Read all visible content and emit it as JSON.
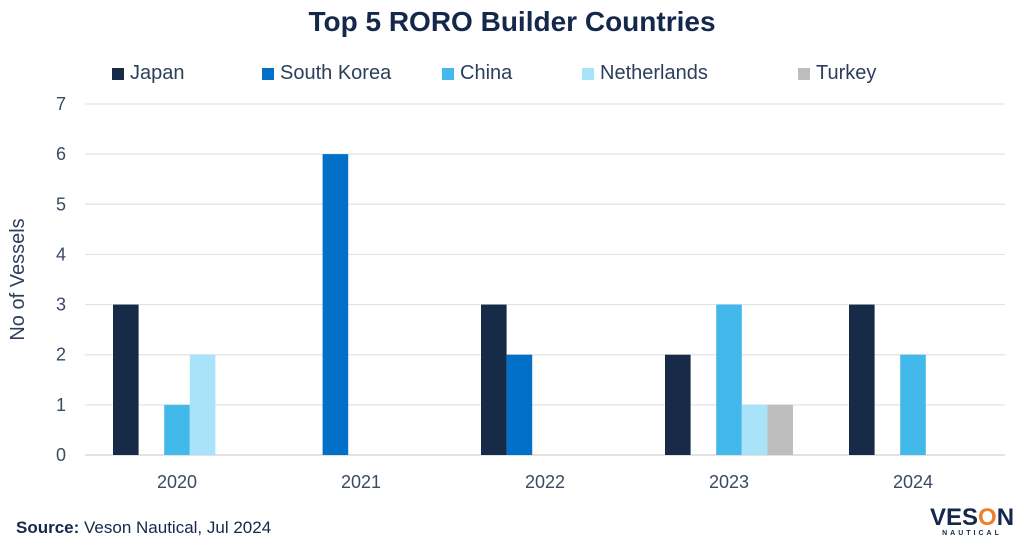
{
  "chart_data": {
    "type": "bar",
    "title": "Top 5 RORO Builder Countries",
    "xlabel": "",
    "ylabel": "No of Vessels",
    "ylim": [
      0,
      7
    ],
    "yticks": [
      "0",
      "1",
      "2",
      "3",
      "4",
      "5",
      "6",
      "7"
    ],
    "grid": true,
    "legend_position": "top",
    "categories": [
      "2020",
      "2021",
      "2022",
      "2023",
      "2024"
    ],
    "series": [
      {
        "name": "Japan",
        "color": "#172a48",
        "values": [
          3,
          0,
          3,
          2,
          3
        ]
      },
      {
        "name": "South Korea",
        "color": "#0270c8",
        "values": [
          0,
          6,
          2,
          0,
          0
        ]
      },
      {
        "name": "China",
        "color": "#42b9ea",
        "values": [
          1,
          0,
          0,
          3,
          2
        ]
      },
      {
        "name": "Netherlands",
        "color": "#a8e3fa",
        "values": [
          2,
          0,
          0,
          1,
          0
        ]
      },
      {
        "name": "Turkey",
        "color": "#bdbdbd",
        "values": [
          0,
          0,
          0,
          1,
          0
        ]
      }
    ]
  },
  "footer": {
    "source_label": "Source:",
    "source_text": " Veson Nautical, Jul 2024"
  },
  "logo": {
    "main_pre": "VES",
    "main_o": "O",
    "main_post": "N",
    "sub": "NAUTICAL"
  }
}
